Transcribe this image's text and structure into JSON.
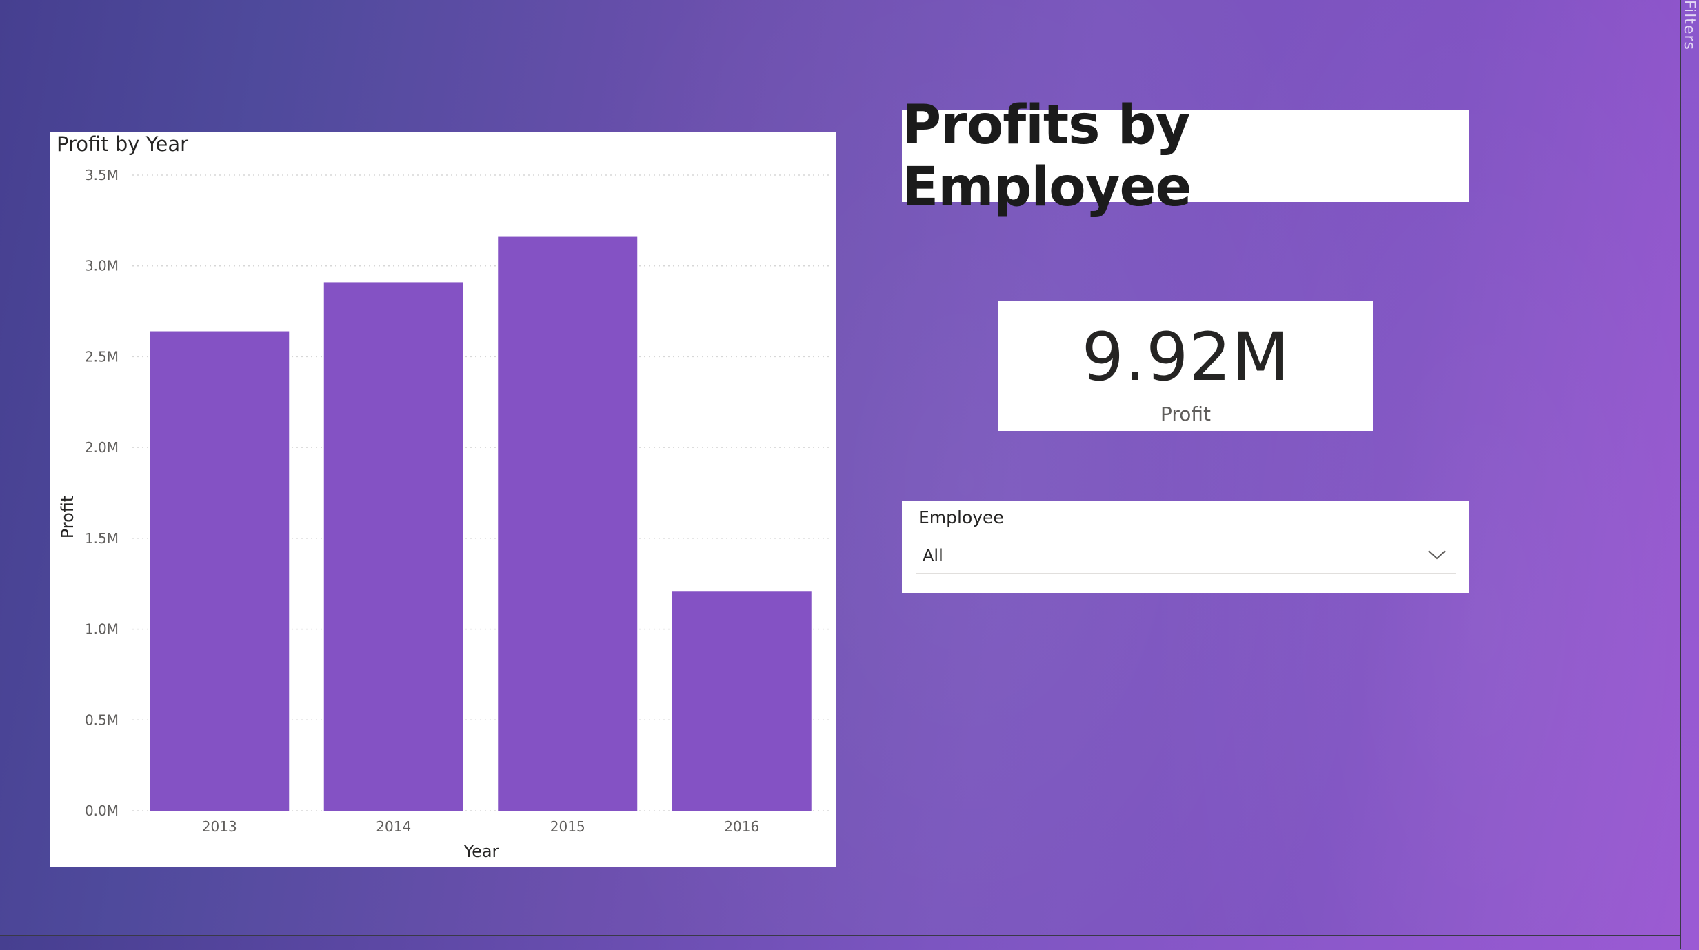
{
  "report": {
    "side_pane_label": "Filters"
  },
  "title_card": {
    "text": "Profits by Employee"
  },
  "kpi": {
    "value": "9.92M",
    "label": "Profit"
  },
  "slicer": {
    "label": "Employee",
    "selected": "All"
  },
  "colors": {
    "bar": "#8452c4",
    "card_bg": "#ffffff",
    "gridline": "#d7d7d7"
  },
  "chart_data": {
    "type": "bar",
    "title": "Profit by Year",
    "xlabel": "Year",
    "ylabel": "Profit",
    "categories": [
      "2013",
      "2014",
      "2015",
      "2016"
    ],
    "values": [
      2.64,
      2.91,
      3.16,
      1.21
    ],
    "value_unit": "M",
    "ylim": [
      0,
      3.5
    ],
    "y_ticks": [
      "0.0M",
      "0.5M",
      "1.0M",
      "1.5M",
      "2.0M",
      "2.5M",
      "3.0M",
      "3.5M"
    ],
    "grid": true,
    "legend": "none"
  }
}
